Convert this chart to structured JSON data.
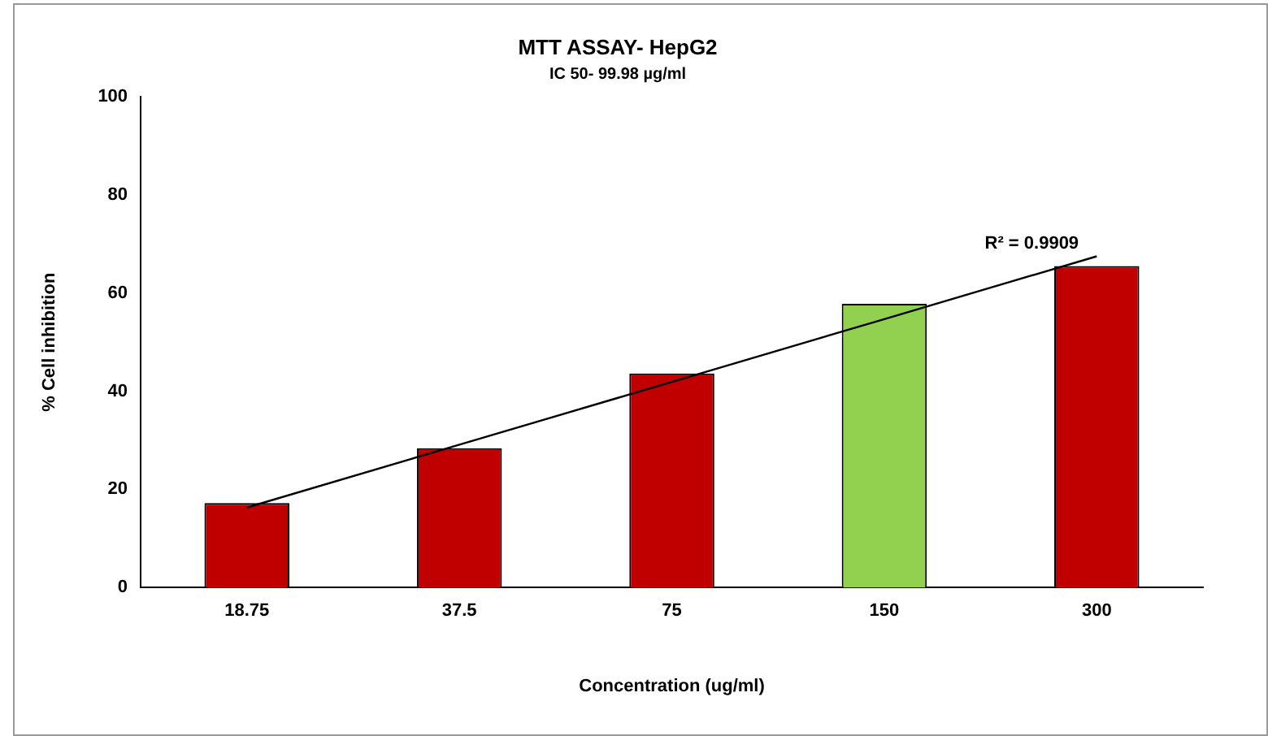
{
  "chart_data": {
    "type": "bar",
    "title": "MTT ASSAY- HepG2",
    "subtitle": "IC 50- 99.98 µg/ml",
    "xlabel": "Concentration (ug/ml)",
    "ylabel": "% Cell inhibition",
    "categories": [
      "18.75",
      "37.5",
      "75",
      "150",
      "300"
    ],
    "series": [
      {
        "colors": [
          "#c00000",
          "#c00000",
          "#c00000",
          "#92d050",
          "#c00000"
        ],
        "values": [
          17.2,
          28.4,
          43.6,
          57.8,
          65.5
        ]
      },
      {
        "type": "line",
        "color": "#000000",
        "values": [
          16.3,
          29.1,
          41.9,
          54.7,
          67.5
        ],
        "marker": "none"
      }
    ],
    "annotations": [
      {
        "text": "R² = 0.9909",
        "x": "300",
        "y": 69
      }
    ],
    "ylim": [
      0,
      100
    ],
    "yticks": [
      0,
      20,
      40,
      60,
      80,
      100
    ],
    "grid": false,
    "legend": false
  }
}
